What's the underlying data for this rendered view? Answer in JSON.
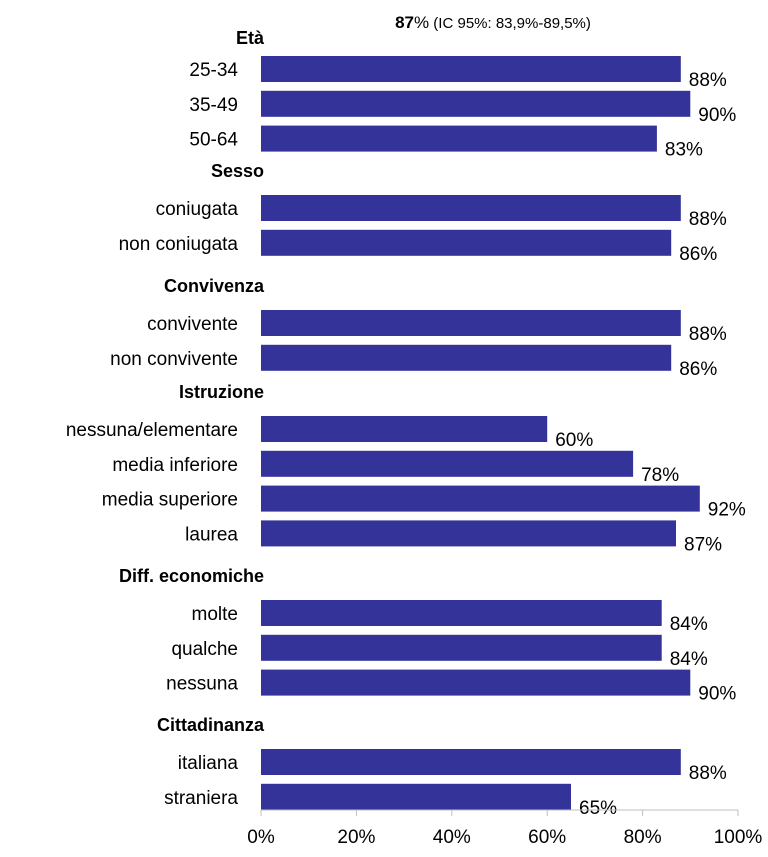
{
  "chart_data": {
    "type": "bar",
    "orientation": "horizontal",
    "subtitle": {
      "bold": "87",
      "rest_main": "%",
      "rest_small": " (IC 95%: 83,9%-89,5%)"
    },
    "xlim": [
      0,
      100
    ],
    "xticks": [
      "0%",
      "20%",
      "40%",
      "60%",
      "80%",
      "100%"
    ],
    "bar_color": "#333399",
    "groups": [
      {
        "label": "Età",
        "items": [
          {
            "category": "25-34",
            "value": 88,
            "label": "88%"
          },
          {
            "category": "35-49",
            "value": 90,
            "label": "90%"
          },
          {
            "category": "50-64",
            "value": 83,
            "label": "83%"
          }
        ]
      },
      {
        "label": "Sesso",
        "items": [
          {
            "category": "coniugata",
            "value": 88,
            "label": "88%"
          },
          {
            "category": "non coniugata",
            "value": 86,
            "label": "86%"
          }
        ]
      },
      {
        "label": "Convivenza",
        "items": [
          {
            "category": "convivente",
            "value": 88,
            "label": "88%"
          },
          {
            "category": "non convivente",
            "value": 86,
            "label": "86%"
          }
        ]
      },
      {
        "label": "Istruzione",
        "items": [
          {
            "category": "nessuna/elementare",
            "value": 60,
            "label": "60%"
          },
          {
            "category": "media inferiore",
            "value": 78,
            "label": "78%"
          },
          {
            "category": "media superiore",
            "value": 92,
            "label": "92%"
          },
          {
            "category": "laurea",
            "value": 87,
            "label": "87%"
          }
        ]
      },
      {
        "label": "Diff. economiche",
        "items": [
          {
            "category": "molte",
            "value": 84,
            "label": "84%"
          },
          {
            "category": "qualche",
            "value": 84,
            "label": "84%"
          },
          {
            "category": "nessuna",
            "value": 90,
            "label": "90%"
          }
        ]
      },
      {
        "label": "Cittadinanza",
        "items": [
          {
            "category": "italiana",
            "value": 88,
            "label": "88%"
          },
          {
            "category": "straniera",
            "value": 65,
            "label": "65%"
          }
        ]
      }
    ]
  }
}
